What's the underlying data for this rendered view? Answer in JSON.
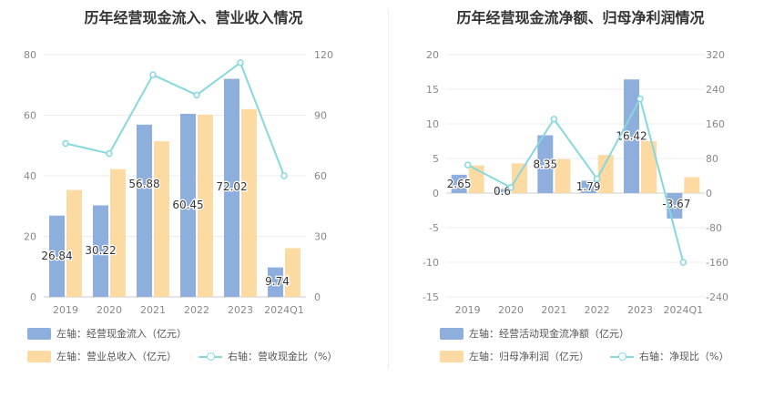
{
  "charts": {
    "left": {
      "title": "历年经营现金流入、营业收入情况",
      "legend": {
        "bar1": "左轴：经营现金流入（亿元）",
        "bar2": "左轴：营业总收入（亿元）",
        "line": "右轴：营收现金比（%）"
      }
    },
    "right": {
      "title": "历年经营现金流净额、归母净利润情况",
      "legend": {
        "bar1": "左轴：经营活动现金流净额（亿元）",
        "bar2": "左轴：归母净利润（亿元）",
        "line": "右轴：净现比（%）"
      }
    }
  },
  "colors": {
    "bar1": "#8eaedd",
    "bar2": "#fcdaa1",
    "line": "#86d8df",
    "axis_text": "#888888",
    "grid": "#eeeeee"
  },
  "chart_data": [
    {
      "type": "bar",
      "title": "历年经营现金流入、营业收入情况",
      "categories": [
        "2019",
        "2020",
        "2021",
        "2022",
        "2023",
        "2024Q1"
      ],
      "y_left": {
        "min": 0,
        "max": 80,
        "ticks": [
          0,
          20,
          40,
          60,
          80
        ]
      },
      "y_right": {
        "min": 0,
        "max": 120,
        "ticks": [
          0,
          30,
          60,
          90,
          120
        ]
      },
      "series": [
        {
          "name": "左轴：经营现金流入（亿元）",
          "type": "bar",
          "axis": "left",
          "values": [
            26.84,
            30.22,
            56.88,
            60.45,
            72.02,
            9.74
          ],
          "labels": [
            "26.84",
            "30.22",
            "56.88",
            "60.45",
            "72.02",
            "9.74"
          ]
        },
        {
          "name": "左轴：营业总收入（亿元）",
          "type": "bar",
          "axis": "left",
          "values": [
            35.3,
            42.2,
            51.4,
            60.2,
            62.0,
            16.1
          ]
        },
        {
          "name": "右轴：营收现金比（%）",
          "type": "line",
          "axis": "right",
          "values": [
            76,
            71,
            110,
            100,
            116,
            60
          ]
        }
      ]
    },
    {
      "type": "bar",
      "title": "历年经营现金流净额、归母净利润情况",
      "categories": [
        "2019",
        "2020",
        "2021",
        "2022",
        "2023",
        "2024Q1"
      ],
      "y_left": {
        "min": -15,
        "max": 20,
        "ticks": [
          -15,
          -10,
          -5,
          0,
          5,
          10,
          15,
          20
        ]
      },
      "y_right": {
        "min": -240,
        "max": 320,
        "ticks": [
          -240,
          -160,
          -80,
          0,
          80,
          160,
          240,
          320
        ]
      },
      "series": [
        {
          "name": "左轴：经营活动现金流净额（亿元）",
          "type": "bar",
          "axis": "left",
          "values": [
            2.65,
            0.6,
            8.35,
            1.79,
            16.42,
            -3.67
          ],
          "labels": [
            "2.65",
            "0.6",
            "8.35",
            "1.79",
            "16.42",
            "-3.67"
          ]
        },
        {
          "name": "左轴：归母净利润（亿元）",
          "type": "bar",
          "axis": "left",
          "values": [
            4.0,
            4.3,
            4.9,
            5.5,
            7.5,
            2.3
          ]
        },
        {
          "name": "右轴：净现比（%）",
          "type": "line",
          "axis": "right",
          "values": [
            65,
            13,
            171,
            33,
            218,
            -160
          ]
        }
      ]
    }
  ]
}
